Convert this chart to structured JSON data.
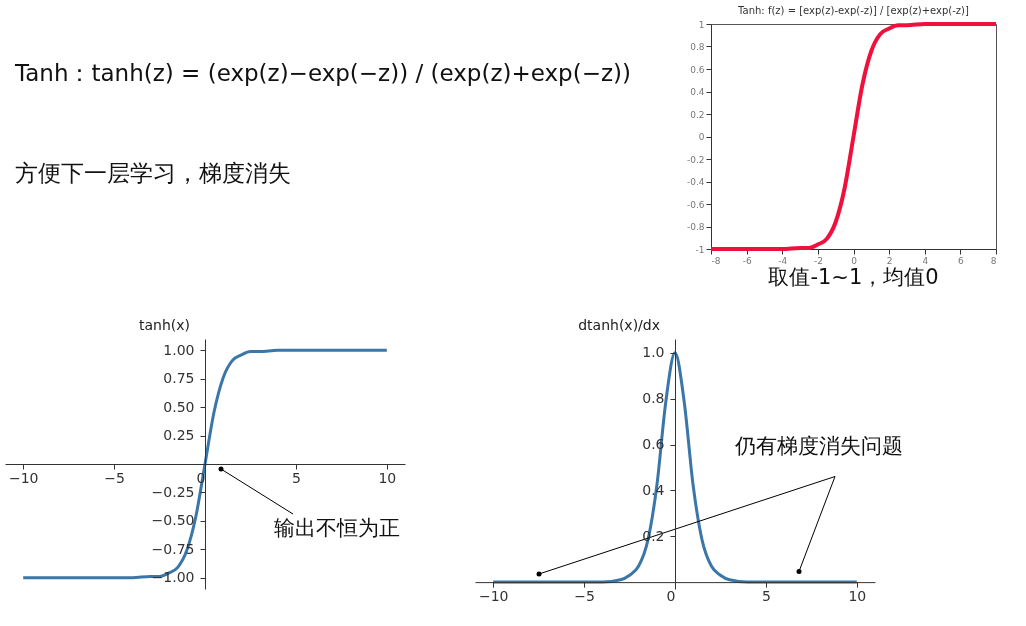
{
  "chart_data": [
    {
      "type": "other",
      "annotations": [
        "Tanh：tanh(z) = (exp(z)−exp(−z)) / (exp(z)+exp(−z))",
        "方便下一层学习，梯度消失"
      ]
    },
    {
      "type": "line",
      "title": "Tanh:   f(z) = [exp(z)-exp(-z)] / [exp(z)+exp(-z)]",
      "annotations": [
        "取值-1~1，均值0"
      ],
      "xlim": [
        -8,
        8
      ],
      "xticks": [
        {
          "value": -8,
          "label": "-8"
        },
        {
          "value": -6,
          "label": "-6"
        },
        {
          "value": -4,
          "label": "-4"
        },
        {
          "value": -2,
          "label": "-2"
        },
        0,
        2,
        4,
        6,
        8
      ],
      "ylim": [
        -1,
        1
      ],
      "yticks": [
        {
          "value": -1,
          "label": "-1"
        },
        {
          "value": -0.8,
          "label": "-0.8"
        },
        {
          "value": -0.6,
          "label": "-0.6"
        },
        {
          "value": -0.4,
          "label": "-0.4"
        },
        {
          "value": -0.2,
          "label": "-0.2"
        },
        0,
        0.2,
        0.4,
        0.6,
        0.8,
        1
      ],
      "grid": false,
      "series": [
        {
          "color": "#f0103c",
          "x": [
            -8,
            -4,
            -3,
            -2.5,
            -2,
            -1.5,
            -1,
            -0.5,
            0,
            0.5,
            1,
            1.5,
            2,
            2.5,
            3,
            4,
            8
          ],
          "values": [
            -1.0,
            -1.0,
            -0.99,
            -0.99,
            -0.96,
            -0.91,
            -0.76,
            -0.46,
            0,
            0.46,
            0.76,
            0.91,
            0.96,
            0.99,
            0.99,
            1.0,
            1.0
          ]
        }
      ]
    },
    {
      "type": "line",
      "ylabel": "tanh(x)",
      "annotations": [
        "输出不恒为正"
      ],
      "xlim": [
        -11,
        11
      ],
      "xticks": [
        {
          "value": -10,
          "label": "−10"
        },
        {
          "value": -5,
          "label": "−5"
        },
        0,
        5,
        10
      ],
      "ylim": [
        -1.1,
        1.1
      ],
      "yticks": [
        {
          "value": -1,
          "label": "−1.00"
        },
        {
          "value": -0.75,
          "label": "−0.75"
        },
        {
          "value": -0.5,
          "label": "−0.50"
        },
        {
          "value": -0.25,
          "label": "−0.25"
        },
        {
          "value": 0.25,
          "label": "0.25"
        },
        {
          "value": 0.5,
          "label": "0.50"
        },
        {
          "value": 0.75,
          "label": "0.75"
        },
        {
          "value": 1,
          "label": "1.00"
        }
      ],
      "grid": false,
      "series": [
        {
          "color": "#3a77a8",
          "x": [
            -10,
            -4,
            -3,
            -2.5,
            -2,
            -1.5,
            -1,
            -0.5,
            0,
            0.5,
            1,
            1.5,
            2,
            2.5,
            3,
            4,
            10
          ],
          "values": [
            -1.0,
            -1.0,
            -0.99,
            -0.99,
            -0.96,
            -0.91,
            -0.76,
            -0.46,
            0,
            0.46,
            0.76,
            0.91,
            0.96,
            0.99,
            0.99,
            1.0,
            1.0
          ]
        }
      ]
    },
    {
      "type": "line",
      "ylabel": "dtanh(x)/dx",
      "annotations": [
        "仍有梯度消失问题"
      ],
      "xlim": [
        -11,
        11
      ],
      "xticks": [
        {
          "value": -10,
          "label": "−10"
        },
        {
          "value": -5,
          "label": "−5"
        },
        0,
        {
          "value": 5,
          "label": "5"
        },
        {
          "value": 10,
          "label": "10"
        }
      ],
      "ylim": [
        -0.03,
        1.06
      ],
      "yticks": [
        {
          "value": 0.2,
          "label": "0.2"
        },
        {
          "value": 0.4,
          "label": "0.4"
        },
        {
          "value": 0.6,
          "label": "0.6"
        },
        {
          "value": 0.8,
          "label": "0.8"
        },
        {
          "value": 1,
          "label": "1.0"
        }
      ],
      "grid": false,
      "series": [
        {
          "color": "#3a77a8",
          "x": [
            -10,
            -5,
            -4,
            -3,
            -2.5,
            -2,
            -1.5,
            -1,
            -0.5,
            0,
            0.5,
            1,
            1.5,
            2,
            2.5,
            3,
            4,
            5,
            10
          ],
          "values": [
            0,
            0,
            0,
            0.01,
            0.03,
            0.07,
            0.18,
            0.42,
            0.79,
            1.0,
            0.79,
            0.42,
            0.18,
            0.07,
            0.03,
            0.01,
            0,
            0,
            0
          ]
        }
      ]
    }
  ]
}
